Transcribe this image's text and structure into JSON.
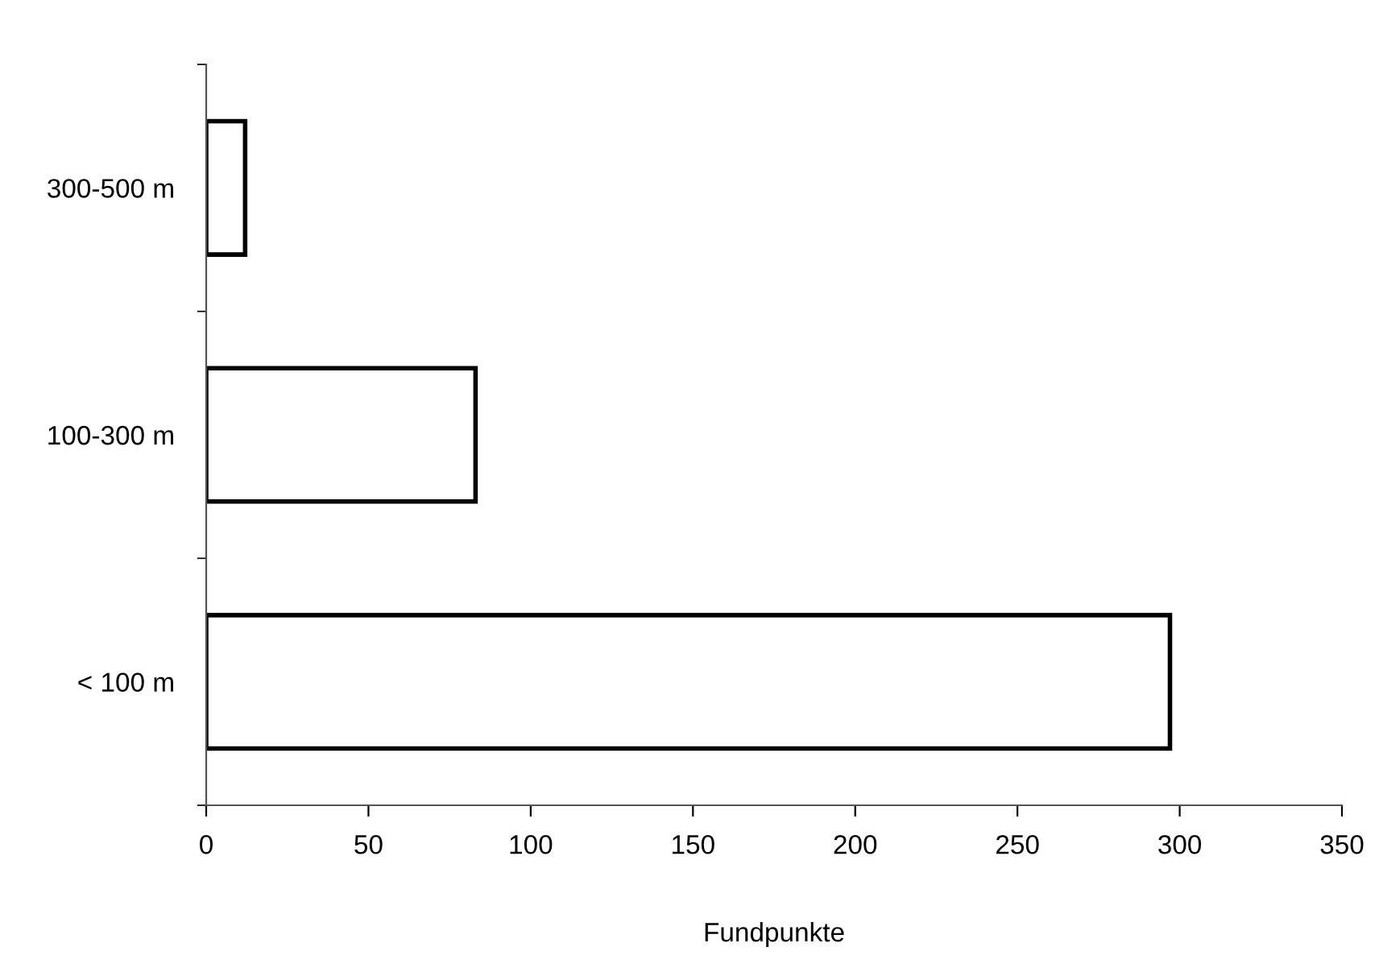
{
  "chart_data": {
    "type": "bar",
    "orientation": "horizontal",
    "xlabel": "Fundpunkte",
    "categories": [
      "300-500 m",
      "100-300 m",
      "< 100 m"
    ],
    "values": [
      12,
      83,
      297
    ],
    "color": "#ffffff",
    "xlim": [
      0,
      350
    ],
    "xticks": [
      0,
      50,
      100,
      150,
      200,
      250,
      300,
      350
    ],
    "grid": false,
    "legend": false
  }
}
